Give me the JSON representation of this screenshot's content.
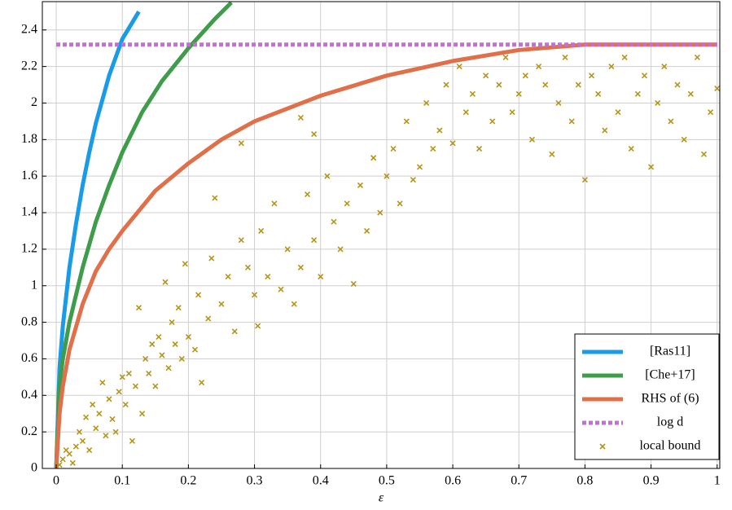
{
  "chart_data": {
    "type": "line",
    "xlabel": "ε",
    "xlim": [
      -0.021,
      1.004
    ],
    "ylim": [
      0,
      2.555
    ],
    "xticks": [
      0,
      0.1,
      0.2,
      0.3,
      0.4,
      0.5,
      0.6,
      0.7,
      0.8,
      0.9,
      1
    ],
    "yticks": [
      0,
      0.2,
      0.4,
      0.6,
      0.8,
      1,
      1.2,
      1.4,
      1.6,
      1.8,
      2,
      2.2,
      2.4
    ],
    "grid": true,
    "legend": "lower right",
    "series": [
      {
        "name": "[Ras11]",
        "color": "#1a9be8",
        "style": "solid",
        "x": [
          0,
          0.005,
          0.01,
          0.02,
          0.03,
          0.04,
          0.05,
          0.06,
          0.08,
          0.1,
          0.125
        ],
        "values": [
          0,
          0.55,
          0.78,
          1.1,
          1.34,
          1.55,
          1.73,
          1.89,
          2.15,
          2.35,
          2.5
        ]
      },
      {
        "name": "[Che+17]",
        "color": "#3e9c4a",
        "style": "solid",
        "x": [
          0,
          0.005,
          0.01,
          0.02,
          0.04,
          0.06,
          0.08,
          0.1,
          0.13,
          0.16,
          0.2,
          0.24,
          0.265
        ],
        "values": [
          0,
          0.45,
          0.6,
          0.8,
          1.1,
          1.35,
          1.55,
          1.73,
          1.95,
          2.12,
          2.3,
          2.46,
          2.55
        ]
      },
      {
        "name": "RHS of (6)",
        "color": "#e0704a",
        "style": "solid",
        "x": [
          0,
          0.005,
          0.01,
          0.02,
          0.04,
          0.06,
          0.08,
          0.1,
          0.15,
          0.2,
          0.25,
          0.3,
          0.4,
          0.5,
          0.6,
          0.7,
          0.8,
          1
        ],
        "values": [
          0,
          0.3,
          0.45,
          0.65,
          0.9,
          1.08,
          1.2,
          1.3,
          1.52,
          1.67,
          1.8,
          1.9,
          2.04,
          2.15,
          2.23,
          2.29,
          2.32,
          2.32
        ]
      },
      {
        "name": "log d",
        "color": "#c36fd6",
        "style": "dotted",
        "x": [
          0,
          1
        ],
        "values": [
          2.32,
          2.32
        ]
      },
      {
        "name": "local bound",
        "color": "#b39619",
        "style": "markers",
        "x": [
          0.005,
          0.01,
          0.015,
          0.02,
          0.025,
          0.03,
          0.035,
          0.04,
          0.045,
          0.05,
          0.055,
          0.06,
          0.065,
          0.07,
          0.075,
          0.08,
          0.085,
          0.09,
          0.095,
          0.1,
          0.105,
          0.11,
          0.115,
          0.12,
          0.125,
          0.13,
          0.135,
          0.14,
          0.145,
          0.15,
          0.155,
          0.16,
          0.165,
          0.17,
          0.175,
          0.18,
          0.185,
          0.19,
          0.195,
          0.2,
          0.21,
          0.215,
          0.22,
          0.23,
          0.235,
          0.24,
          0.25,
          0.26,
          0.27,
          0.28,
          0.29,
          0.3,
          0.305,
          0.31,
          0.32,
          0.33,
          0.34,
          0.35,
          0.36,
          0.37,
          0.38,
          0.39,
          0.4,
          0.41,
          0.42,
          0.43,
          0.44,
          0.45,
          0.46,
          0.47,
          0.48,
          0.49,
          0.5,
          0.51,
          0.52,
          0.53,
          0.54,
          0.55,
          0.56,
          0.57,
          0.58,
          0.59,
          0.6,
          0.61,
          0.62,
          0.63,
          0.64,
          0.65,
          0.66,
          0.67,
          0.68,
          0.69,
          0.7,
          0.71,
          0.72,
          0.73,
          0.74,
          0.75,
          0.76,
          0.77,
          0.78,
          0.79,
          0.8,
          0.81,
          0.82,
          0.83,
          0.84,
          0.85,
          0.86,
          0.87,
          0.88,
          0.89,
          0.9,
          0.91,
          0.92,
          0.93,
          0.94,
          0.95,
          0.96,
          0.97,
          0.98,
          0.99,
          1.0,
          0.28,
          0.37,
          0.39
        ],
        "values": [
          0.02,
          0.05,
          0.1,
          0.08,
          0.03,
          0.12,
          0.2,
          0.15,
          0.28,
          0.1,
          0.35,
          0.22,
          0.3,
          0.47,
          0.18,
          0.38,
          0.27,
          0.2,
          0.42,
          0.5,
          0.35,
          0.52,
          0.15,
          0.45,
          0.88,
          0.3,
          0.6,
          0.52,
          0.68,
          0.45,
          0.72,
          0.62,
          1.02,
          0.55,
          0.8,
          0.68,
          0.88,
          0.6,
          1.12,
          0.72,
          0.65,
          0.95,
          0.47,
          0.82,
          1.15,
          1.48,
          0.9,
          1.05,
          0.75,
          1.25,
          1.1,
          0.95,
          0.78,
          1.3,
          1.05,
          1.45,
          0.98,
          1.2,
          0.9,
          1.1,
          1.5,
          1.25,
          1.05,
          1.6,
          1.35,
          1.2,
          1.45,
          1.01,
          1.55,
          1.3,
          1.7,
          1.4,
          1.6,
          1.75,
          1.45,
          1.9,
          1.58,
          1.65,
          2.0,
          1.75,
          1.85,
          2.1,
          1.78,
          2.2,
          1.95,
          2.05,
          1.75,
          2.15,
          1.9,
          2.1,
          2.25,
          1.95,
          2.05,
          2.15,
          1.8,
          2.2,
          2.1,
          1.72,
          2.0,
          2.25,
          1.9,
          2.1,
          1.58,
          2.15,
          2.05,
          1.85,
          2.2,
          1.95,
          2.25,
          1.75,
          2.05,
          2.15,
          1.65,
          2.0,
          2.2,
          1.9,
          2.1,
          1.8,
          2.05,
          2.25,
          1.72,
          1.95,
          2.08,
          1.78,
          1.92,
          1.83
        ]
      }
    ]
  }
}
